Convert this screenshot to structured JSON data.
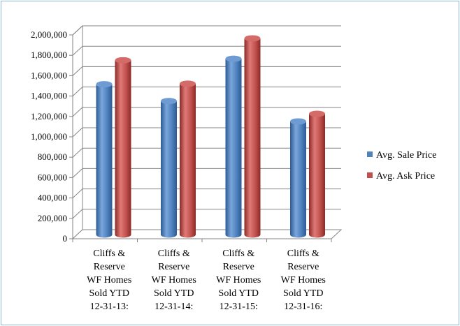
{
  "chart_data": {
    "type": "bar",
    "style": "3d-cylinder",
    "categories": [
      [
        "Cliffs &",
        "Reserve",
        "WF Homes",
        "Sold YTD",
        "12-31-13:"
      ],
      [
        "Cliffs &",
        "Reserve",
        "WF Homes",
        "Sold YTD",
        "12-31-14:"
      ],
      [
        "Cliffs &",
        "Reserve",
        "WF Homes",
        "Sold YTD",
        "12-31-15:"
      ],
      [
        "Cliffs &",
        "Reserve",
        "WF Homes",
        "Sold YTD",
        "12-31-16:"
      ]
    ],
    "series": [
      {
        "name": "Avg. Sale Price",
        "color": "#4f81bd",
        "values": [
          1475000,
          1310000,
          1725000,
          1110000
        ]
      },
      {
        "name": "Avg. Ask Price",
        "color": "#c0504d",
        "values": [
          1710000,
          1480000,
          1925000,
          1185000
        ]
      }
    ],
    "ylim": [
      0,
      2000000
    ],
    "yticks": [
      "0",
      "200,000",
      "400,000",
      "600,000",
      "800,000",
      "1,000,000",
      "1,200,000",
      "1,400,000",
      "1,600,000",
      "1,800,000",
      "2,000,000"
    ],
    "grid": true,
    "legend_position": "right",
    "title": "",
    "xlabel": "",
    "ylabel": ""
  }
}
